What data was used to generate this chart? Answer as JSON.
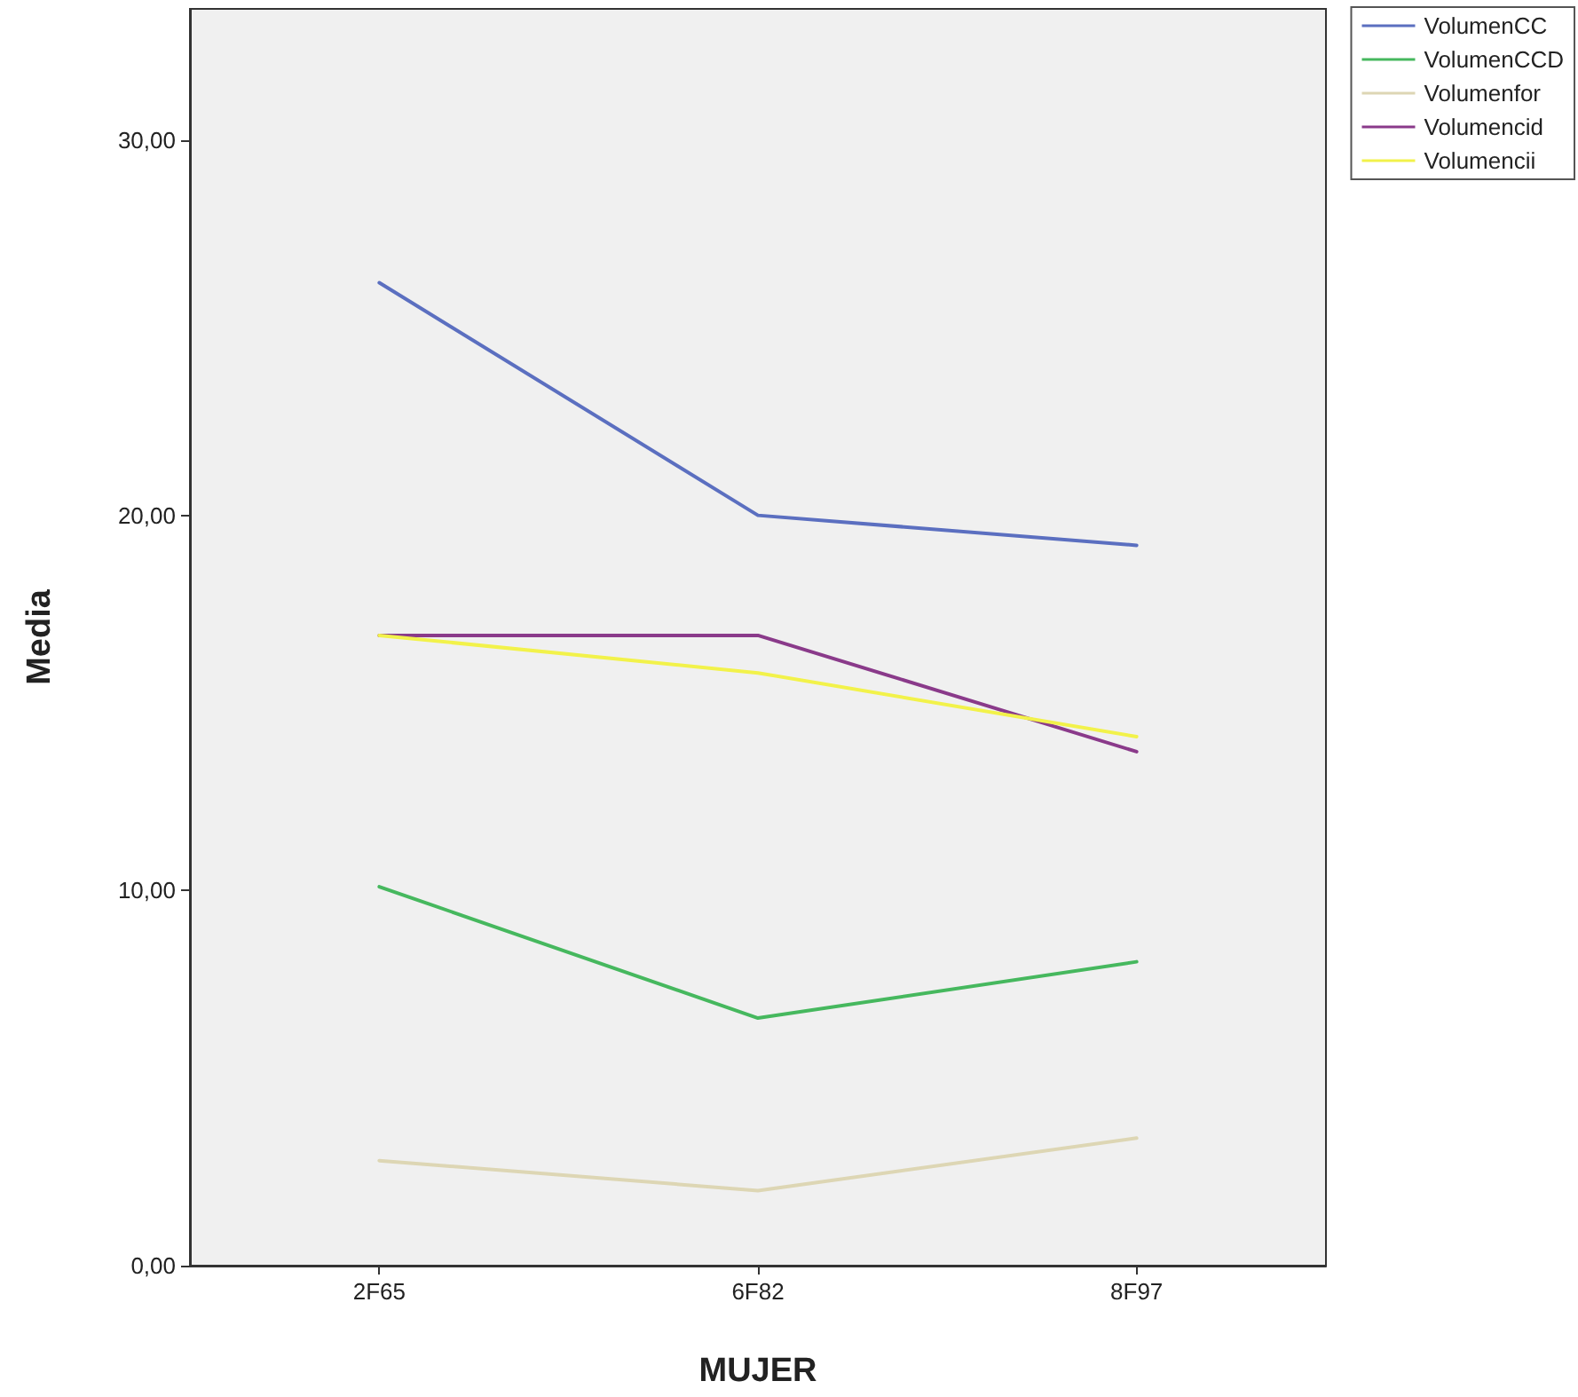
{
  "chart_data": {
    "type": "line",
    "xlabel": "MUJER",
    "ylabel": "Media",
    "categories": [
      "2F65",
      "6F82",
      "8F97"
    ],
    "series": [
      {
        "name": "VolumenCC",
        "color": "#5b6fc0",
        "values": [
          26.2,
          20.0,
          19.2
        ]
      },
      {
        "name": "VolumenCCD",
        "color": "#46b85e",
        "values": [
          10.1,
          6.6,
          8.1
        ]
      },
      {
        "name": "Volumenfor",
        "color": "#ddd6b4",
        "values": [
          2.8,
          2.0,
          3.4
        ]
      },
      {
        "name": "Volumencid",
        "color": "#8a3a8a",
        "values": [
          16.8,
          16.8,
          13.7
        ]
      },
      {
        "name": "Volumencii",
        "color": "#f2f24a",
        "values": [
          16.8,
          15.8,
          14.1
        ]
      }
    ],
    "ylim": [
      0,
      33.5
    ],
    "yticks": [
      {
        "value": 0,
        "label": "0,00"
      },
      {
        "value": 10,
        "label": "10,00"
      },
      {
        "value": 20,
        "label": "20,00"
      },
      {
        "value": 30,
        "label": "30,00"
      }
    ],
    "grid": false,
    "legend": "top right",
    "marker": "none",
    "line_style": "solid"
  }
}
